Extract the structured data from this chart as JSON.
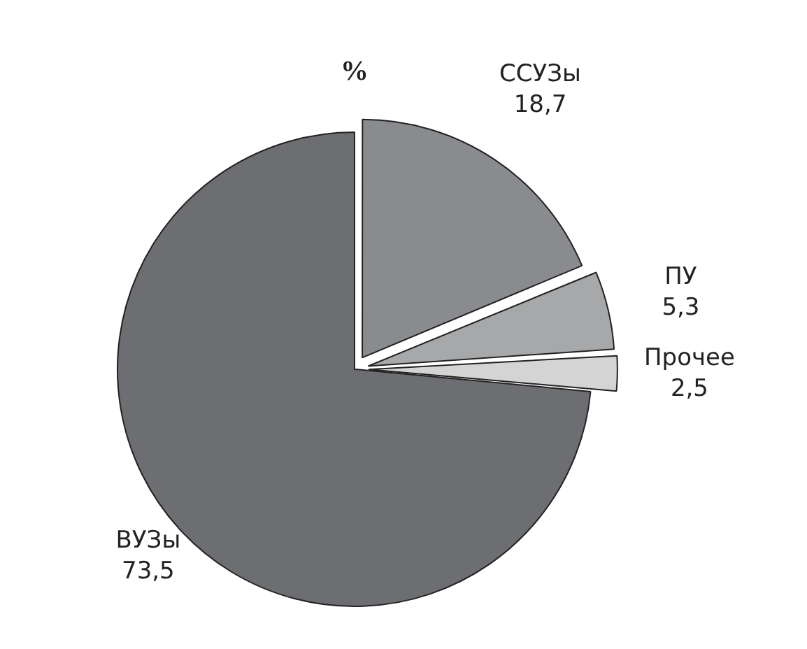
{
  "chart_data": {
    "type": "pie",
    "title": "%",
    "categories": [
      "ССУЗы",
      "ПУ",
      "Прочее",
      "ВУЗы"
    ],
    "values": [
      18.7,
      5.3,
      2.5,
      73.5
    ],
    "value_labels": [
      "18,7",
      "5,3",
      "2,5",
      "73,5"
    ],
    "colors": [
      "#8a8b8e",
      "#a7a8aa",
      "#d4d4d4",
      "#6d6e71"
    ],
    "legend": false
  }
}
